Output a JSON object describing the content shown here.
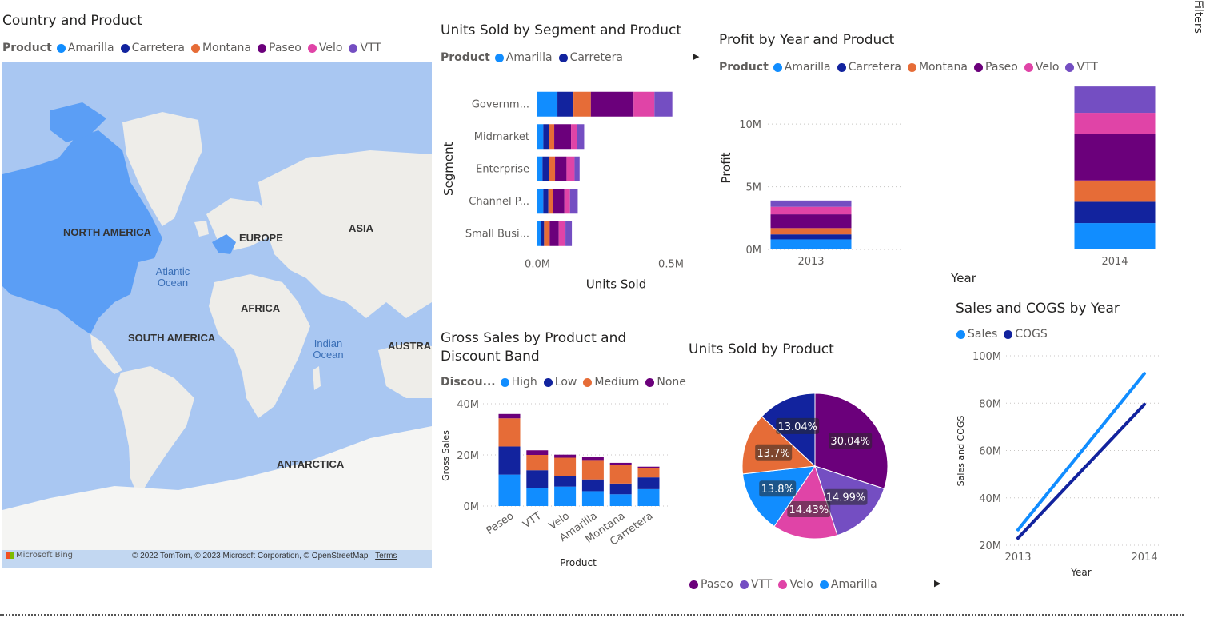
{
  "colors": {
    "Amarilla": "#118DFF",
    "Carretera": "#12239E",
    "Montana": "#E66C37",
    "Paseo": "#6B007B",
    "Velo": "#E044A7",
    "VTT": "#744EC2",
    "High": "#118DFF",
    "Low": "#12239E",
    "Medium": "#E66C37",
    "None": "#6B007B",
    "Sales": "#118DFF",
    "COGS": "#12239E"
  },
  "filters_pane": {
    "label": "Filters"
  },
  "map": {
    "title": "Country and Product",
    "legend_title": "Product",
    "legend": [
      "Amarilla",
      "Carretera",
      "Montana",
      "Paseo",
      "Velo",
      "VTT"
    ],
    "labels": {
      "north_america": "NORTH AMERICA",
      "europe": "EUROPE",
      "asia": "ASIA",
      "africa": "AFRICA",
      "south_america": "SOUTH AMERICA",
      "australia": "AUSTRAL",
      "antarctica": "ANTARCTICA",
      "atlantic": "Atlantic Ocean",
      "indian": "Indian Ocean"
    },
    "attribution": "© 2022 TomTom, © 2023 Microsoft Corporation, © OpenStreetMap",
    "terms": "Terms",
    "bing": "Microsoft Bing"
  },
  "chart_data": [
    {
      "id": "segment",
      "type": "bar",
      "orientation": "horizontal",
      "stacked": true,
      "title": "Units Sold by Segment and Product",
      "legend_title": "Product",
      "legend": [
        "Amarilla",
        "Carretera"
      ],
      "xlabel": "Units Sold",
      "ylabel": "Segment",
      "xticks": [
        "0.0M",
        "0.5M"
      ],
      "xlim": [
        0,
        0.5
      ],
      "categories": [
        "Governm...",
        "Midmarket",
        "Enterprise",
        "Channel P...",
        "Small Busi..."
      ],
      "series": [
        {
          "name": "Amarilla",
          "values": [
            0.075,
            0.022,
            0.019,
            0.022,
            0.012
          ]
        },
        {
          "name": "Carretera",
          "values": [
            0.06,
            0.021,
            0.024,
            0.019,
            0.013
          ]
        },
        {
          "name": "Montana",
          "values": [
            0.065,
            0.02,
            0.023,
            0.018,
            0.021
          ]
        },
        {
          "name": "Paseo",
          "values": [
            0.16,
            0.063,
            0.043,
            0.042,
            0.034
          ]
        },
        {
          "name": "Velo",
          "values": [
            0.078,
            0.023,
            0.03,
            0.021,
            0.025
          ]
        },
        {
          "name": "VTT",
          "values": [
            0.067,
            0.026,
            0.019,
            0.029,
            0.024
          ]
        }
      ]
    },
    {
      "id": "profit",
      "type": "bar",
      "stacked": true,
      "title": "Profit by Year and Product",
      "legend_title": "Product",
      "legend": [
        "Amarilla",
        "Carretera",
        "Montana",
        "Paseo",
        "Velo",
        "VTT"
      ],
      "xlabel": "Year",
      "ylabel": "Profit",
      "yticks": [
        "0M",
        "5M",
        "10M"
      ],
      "ylim": [
        0,
        13.2
      ],
      "categories": [
        "2013",
        "2014"
      ],
      "series": [
        {
          "name": "Amarilla",
          "values": [
            0.8,
            2.1
          ]
        },
        {
          "name": "Carretera",
          "values": [
            0.4,
            1.7
          ]
        },
        {
          "name": "Montana",
          "values": [
            0.5,
            1.7
          ]
        },
        {
          "name": "Paseo",
          "values": [
            1.1,
            3.7
          ]
        },
        {
          "name": "Velo",
          "values": [
            0.6,
            1.7
          ]
        },
        {
          "name": "VTT",
          "values": [
            0.5,
            2.1
          ]
        }
      ]
    },
    {
      "id": "discount",
      "type": "bar",
      "stacked": true,
      "title": "Gross Sales by Product and Discount Band",
      "title_lines": [
        "Gross Sales by Product and",
        "Discount Band"
      ],
      "legend_title": "Discou...",
      "legend": [
        "High",
        "Low",
        "Medium",
        "None"
      ],
      "xlabel": "Product",
      "ylabel": "Gross Sales",
      "yticks": [
        "0M",
        "20M",
        "40M"
      ],
      "ylim": [
        0,
        40
      ],
      "categories": [
        "Paseo",
        "VTT",
        "Velo",
        "Amarilla",
        "Montana",
        "Carretera"
      ],
      "series": [
        {
          "name": "High",
          "values": [
            12.3,
            7.0,
            7.6,
            5.8,
            4.6,
            6.6
          ]
        },
        {
          "name": "Low",
          "values": [
            11.0,
            7.0,
            4.0,
            4.6,
            4.2,
            4.6
          ]
        },
        {
          "name": "Medium",
          "values": [
            11.0,
            6.0,
            7.3,
            7.6,
            7.4,
            3.6
          ]
        },
        {
          "name": "None",
          "values": [
            1.7,
            1.8,
            1.2,
            1.3,
            0.7,
            0.6
          ]
        }
      ]
    },
    {
      "id": "pie",
      "type": "pie",
      "title": "Units Sold by Product",
      "legend": [
        "Paseo",
        "VTT",
        "Velo",
        "Amarilla"
      ],
      "categories": [
        "Paseo",
        "VTT",
        "Velo",
        "Amarilla",
        "Montana",
        "Carretera"
      ],
      "values": [
        30.04,
        14.99,
        14.43,
        13.8,
        13.7,
        13.04
      ],
      "labels": [
        "30.04%",
        "14.99%",
        "14.43%",
        "13.8%",
        "13.7%",
        "13.04%"
      ]
    },
    {
      "id": "cogs",
      "type": "line",
      "title": "Sales and COGS by Year",
      "legend": [
        "Sales",
        "COGS"
      ],
      "xlabel": "Year",
      "ylabel": "Sales and COGS",
      "x": [
        "2013",
        "2014"
      ],
      "yticks": [
        "20M",
        "40M",
        "60M",
        "80M",
        "100M"
      ],
      "ylim": [
        20,
        100
      ],
      "series": [
        {
          "name": "Sales",
          "values": [
            26.5,
            92.5
          ]
        },
        {
          "name": "COGS",
          "values": [
            23.0,
            79.5
          ]
        }
      ]
    }
  ]
}
